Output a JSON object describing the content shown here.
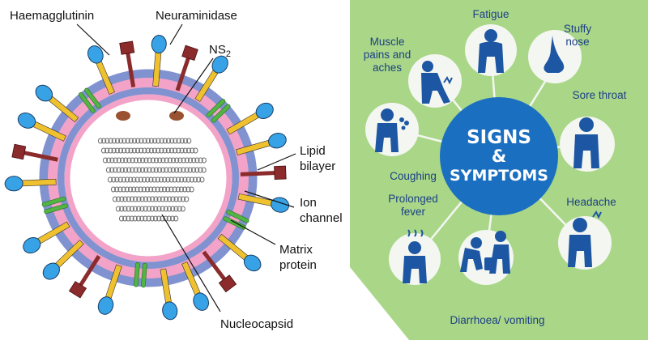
{
  "virus": {
    "labels": {
      "haemagglutinin": "Haemagglutinin",
      "neuraminidase": "Neuraminidase",
      "ns2": "NS",
      "ns2_sub": "2",
      "lipid_1": "Lipid",
      "lipid_2": "bilayer",
      "ion_1": "Ion",
      "ion_2": "channel",
      "matrix_1": "Matrix",
      "matrix_2": "protein",
      "nucleocapsid": "Nucleocapsid"
    },
    "colors": {
      "outer_membrane": "#8092d0",
      "inner_membrane": "#f2a3c7",
      "stalk": "#efc12e",
      "head": "#37a3e6",
      "neuraminidase": "#8b2b2b",
      "channel": "#52b442",
      "ns2": "#9a5230",
      "nucleocapsid": "#6e6e6e"
    }
  },
  "symptoms": {
    "title_line1": "SIGNS",
    "title_line2": "&",
    "title_line3": "SYMPTOMS",
    "items": [
      {
        "id": "fatigue",
        "label_lines": [
          "Fatigue"
        ],
        "icon": "tired-person-icon"
      },
      {
        "id": "stuffy-nose",
        "label_lines": [
          "Stuffy",
          "nose"
        ],
        "icon": "nose-icon"
      },
      {
        "id": "muscle-pains",
        "label_lines": [
          "Muscle",
          "pains and",
          "aches"
        ],
        "icon": "knee-pain-person-icon"
      },
      {
        "id": "sore-throat",
        "label_lines": [
          "Sore throat"
        ],
        "icon": "throat-holding-person-icon"
      },
      {
        "id": "coughing",
        "label_lines": [
          "Coughing"
        ],
        "icon": "coughing-person-icon"
      },
      {
        "id": "headache",
        "label_lines": [
          "Headache"
        ],
        "icon": "head-holding-person-icon"
      },
      {
        "id": "prolonged-fever",
        "label_lines": [
          "Prolonged",
          "fever"
        ],
        "icon": "fever-person-icon"
      },
      {
        "id": "diarrhoea-vomiting",
        "label_lines": [
          "Diarrhoea/ vomiting"
        ],
        "icon": "vomiting-person-icon"
      }
    ],
    "colors": {
      "background": "#a9d787",
      "hub": "#1b6fc0",
      "figure": "#1d57a3",
      "circle": "#f4f6f2",
      "text": "#1d3f86"
    }
  }
}
